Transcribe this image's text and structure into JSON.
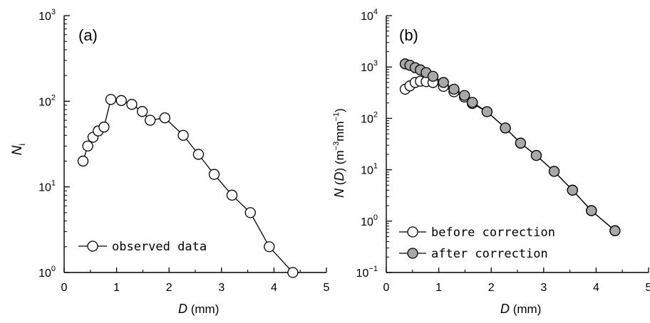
{
  "chart_data": [
    {
      "type": "scatter",
      "panel": "(a)",
      "xlabel": {
        "italic": "D",
        "rest": " (mm)"
      },
      "ylabel": {
        "main": "N",
        "sub": "i"
      },
      "xlim": [
        0,
        5
      ],
      "ylim": [
        1,
        1000
      ],
      "yscale": "log",
      "grid": false,
      "legend_position": "bottom-left",
      "xticks": [
        "0",
        "1",
        "2",
        "3",
        "4",
        "5"
      ],
      "yticks": [
        {
          "base": "10",
          "exp": "0",
          "value": 1
        },
        {
          "base": "10",
          "exp": "1",
          "value": 10
        },
        {
          "base": "10",
          "exp": "2",
          "value": 100
        },
        {
          "base": "10",
          "exp": "3",
          "value": 1000
        }
      ],
      "series": [
        {
          "name": "observed data",
          "marker": "open-circle",
          "line": true,
          "x": [
            0.36,
            0.45,
            0.55,
            0.65,
            0.76,
            0.89,
            1.09,
            1.29,
            1.49,
            1.64,
            1.92,
            2.27,
            2.56,
            2.86,
            3.2,
            3.55,
            3.91,
            4.36
          ],
          "y": [
            20,
            30,
            38,
            45,
            50,
            105,
            102,
            92,
            76,
            60,
            64,
            40,
            24,
            14,
            8,
            5,
            2,
            1
          ]
        }
      ]
    },
    {
      "type": "scatter",
      "panel": "(b)",
      "xlabel": {
        "italic": "D",
        "rest": " (mm)"
      },
      "ylabel": {
        "prefix": "N",
        "italic": "D",
        "unit_base": "m",
        "unit_exp1": "−3",
        "unit_mid": "mm",
        "unit_exp2": "−1"
      },
      "xlim": [
        0,
        5
      ],
      "ylim": [
        0.1,
        10000
      ],
      "yscale": "log",
      "grid": false,
      "legend_position": "bottom-left",
      "xticks": [
        "0",
        "1",
        "2",
        "3",
        "4",
        "5"
      ],
      "yticks": [
        {
          "base": "10",
          "exp": "−1",
          "value": 0.1
        },
        {
          "base": "10",
          "exp": "0",
          "value": 1
        },
        {
          "base": "10",
          "exp": "1",
          "value": 10
        },
        {
          "base": "10",
          "exp": "2",
          "value": 100
        },
        {
          "base": "10",
          "exp": "3",
          "value": 1000
        },
        {
          "base": "10",
          "exp": "4",
          "value": 10000
        }
      ],
      "series": [
        {
          "name": "before correction",
          "marker": "open-circle",
          "line": true,
          "x": [
            0.36,
            0.45,
            0.55,
            0.65,
            0.76,
            0.89,
            1.09,
            1.29,
            1.49,
            1.64,
            1.92,
            2.27,
            2.56,
            2.86,
            3.2,
            3.55,
            3.91,
            4.36
          ],
          "y": [
            370,
            430,
            500,
            530,
            520,
            500,
            420,
            330,
            260,
            195,
            135,
            65,
            33,
            19,
            9.3,
            4,
            1.6,
            0.65
          ]
        },
        {
          "name": "after correction",
          "marker": "gray-circle",
          "line": true,
          "x": [
            0.36,
            0.45,
            0.55,
            0.65,
            0.76,
            0.89,
            1.09,
            1.29,
            1.49,
            1.64,
            1.92,
            2.27,
            2.56,
            2.86,
            3.2,
            3.55,
            3.91,
            4.36
          ],
          "y": [
            1150,
            1080,
            970,
            880,
            780,
            660,
            500,
            370,
            280,
            205,
            135,
            65,
            33,
            19,
            9.3,
            4,
            1.6,
            0.65
          ]
        }
      ]
    }
  ]
}
